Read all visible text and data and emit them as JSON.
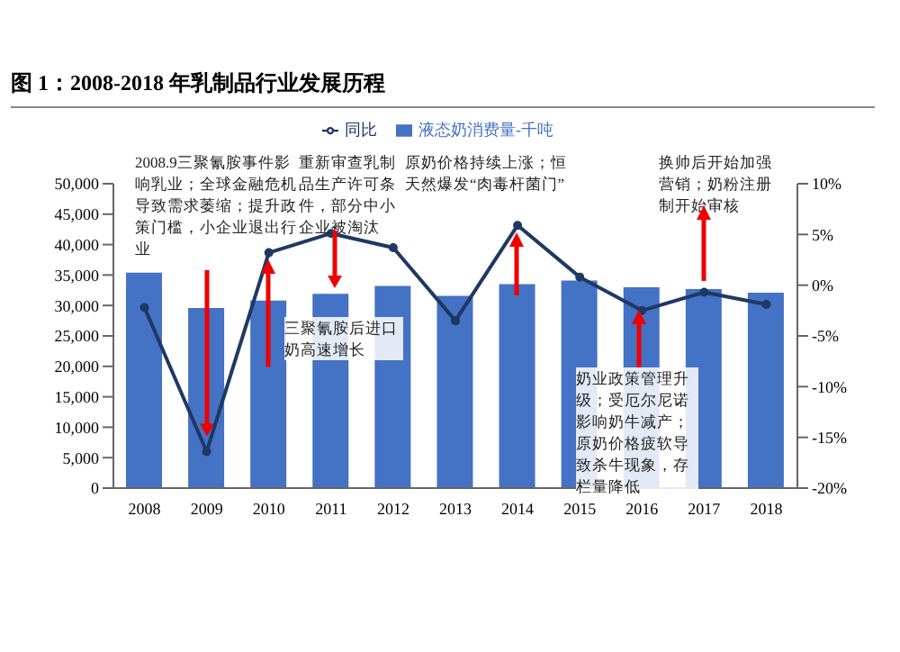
{
  "chart_data": {
    "type": "bar",
    "title": "图 1：2008-2018 年乳制品行业发展历程",
    "categories": [
      "2008",
      "2009",
      "2010",
      "2011",
      "2012",
      "2013",
      "2014",
      "2015",
      "2016",
      "2017",
      "2018"
    ],
    "series": [
      {
        "name": "液态奶消费量-千吨",
        "color": "#4472c4",
        "values": [
          35400,
          29600,
          30800,
          31900,
          33200,
          31600,
          33500,
          34100,
          33000,
          32700,
          32100
        ]
      },
      {
        "name": "同比",
        "type": "line",
        "axis": "y2",
        "color": "#1f3864",
        "values": [
          -2.2,
          -16.4,
          3.2,
          5.1,
          3.7,
          -3.5,
          5.9,
          0.8,
          -2.5,
          -0.7,
          -1.9
        ]
      }
    ],
    "ylim": [
      0,
      50000
    ],
    "yticks": [
      {
        "value": 0,
        "label": "0"
      },
      {
        "value": 5000,
        "label": "5,000"
      },
      {
        "value": 10000,
        "label": "10,000"
      },
      {
        "value": 15000,
        "label": "15,000"
      },
      {
        "value": 20000,
        "label": "20,000"
      },
      {
        "value": 25000,
        "label": "25,000"
      },
      {
        "value": 30000,
        "label": "30,000"
      },
      {
        "value": 35000,
        "label": "35,000"
      },
      {
        "value": 40000,
        "label": "40,000"
      },
      {
        "value": 45000,
        "label": "45,000"
      },
      {
        "value": 50000,
        "label": "50,000"
      }
    ],
    "y2lim": [
      -20,
      10
    ],
    "y2ticks": [
      {
        "value": -20,
        "label": "-20%"
      },
      {
        "value": -15,
        "label": "-15%"
      },
      {
        "value": -10,
        "label": "-10%"
      },
      {
        "value": -5,
        "label": "-5%"
      },
      {
        "value": 0,
        "label": "0%"
      },
      {
        "value": 5,
        "label": "5%"
      },
      {
        "value": 10,
        "label": "10%"
      }
    ],
    "legend": "top",
    "marker": "circle",
    "line_style": "solid",
    "annotations": [
      {
        "text": "2008.9三聚氰胺事件影响乳业；全球金融危机导致需求萎缩；提升政策门槛，小企业退出行业",
        "x": "2009",
        "y": 9000
      },
      "重新审查乳制品生产许可条件，部分中小企业被淘汰",
      "原奶价格持续上涨；恒天然爆发“肉毒杆菌门”",
      {
        "text": "换帅后开始加强营销；奶粉注册制开始审核",
        "x": "2017",
        "y": 32700
      },
      {
        "text": "三聚氰胺后进口奶高速增长",
        "x": "2010",
        "y": 34000
      },
      "奶业政策管理升级；受厄尔尼诺影响奶牛减产；原奶价格疲软导致杀牛现象，存栏量降低"
    ]
  }
}
